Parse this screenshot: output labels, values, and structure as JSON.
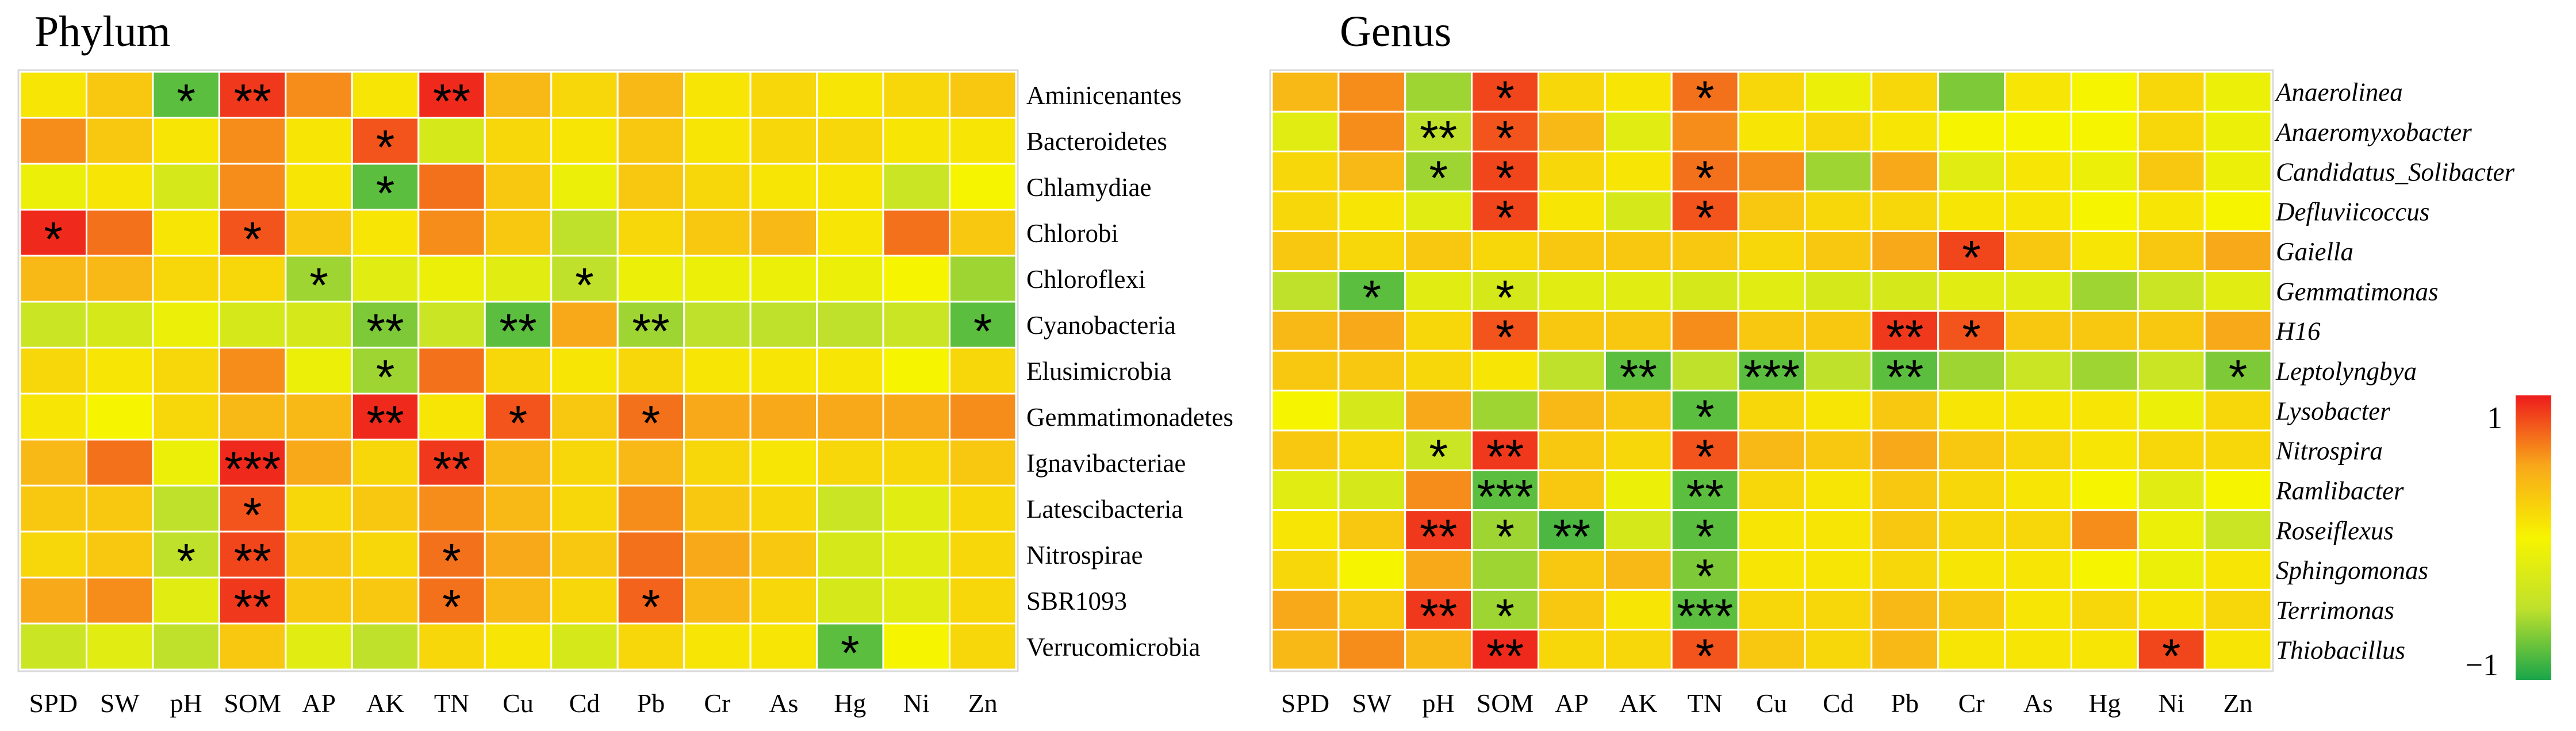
{
  "chart_data": [
    {
      "type": "heatmap",
      "title": "Phylum",
      "italic_labels": false,
      "columns": [
        "SPD",
        "SW",
        "pH",
        "SOM",
        "AP",
        "AK",
        "TN",
        "Cu",
        "Cd",
        "Pb",
        "Cr",
        "As",
        "Hg",
        "Ni",
        "Zn"
      ],
      "rows": [
        "Aminicenantes",
        "Bacteroidetes",
        "Chlamydiae",
        "Chlorobi",
        "Chloroflexi",
        "Cyanobacteria",
        "Elusimicrobia",
        "Gemmatimonadetes",
        "Ignavibacteriae",
        "Latescibacteria",
        "Nitrospirae",
        "SBR1093",
        "Verrucomicrobia"
      ],
      "values": [
        [
          0.1,
          0.3,
          -0.8,
          0.9,
          0.6,
          0.1,
          0.95,
          0.4,
          0.2,
          0.4,
          0.1,
          0.2,
          0.1,
          0.2,
          0.3
        ],
        [
          0.6,
          0.3,
          0.1,
          0.6,
          0.1,
          0.8,
          -0.3,
          0.2,
          0.1,
          0.3,
          0.1,
          0.2,
          0.2,
          0.1,
          0.1
        ],
        [
          -0.1,
          0.1,
          -0.3,
          0.6,
          0.1,
          -0.8,
          0.7,
          0.3,
          -0.1,
          0.3,
          0.2,
          0.1,
          0.1,
          -0.4,
          0.0
        ],
        [
          0.95,
          0.7,
          0.1,
          0.8,
          0.3,
          0.1,
          0.6,
          0.3,
          -0.5,
          0.2,
          0.3,
          0.4,
          0.1,
          0.7,
          0.3
        ],
        [
          0.4,
          0.4,
          0.2,
          0.2,
          -0.6,
          -0.2,
          -0.1,
          -0.2,
          -0.5,
          -0.1,
          -0.1,
          -0.1,
          -0.1,
          0.0,
          -0.6
        ],
        [
          -0.4,
          -0.3,
          -0.1,
          -0.3,
          -0.3,
          -0.7,
          -0.4,
          -0.8,
          0.5,
          -0.6,
          -0.5,
          -0.5,
          -0.5,
          -0.4,
          -0.8
        ],
        [
          0.2,
          0.1,
          0.2,
          0.6,
          -0.1,
          -0.6,
          0.7,
          0.2,
          0.1,
          0.2,
          0.1,
          0.1,
          0.1,
          0.0,
          0.2
        ],
        [
          0.1,
          0.0,
          0.2,
          0.4,
          0.4,
          0.95,
          0.1,
          0.8,
          0.3,
          0.7,
          0.5,
          0.5,
          0.5,
          0.5,
          0.6
        ],
        [
          0.4,
          0.7,
          -0.1,
          0.95,
          0.5,
          0.2,
          0.9,
          0.4,
          0.2,
          0.4,
          0.2,
          0.1,
          0.2,
          0.2,
          0.3
        ],
        [
          0.3,
          0.3,
          -0.5,
          0.8,
          0.2,
          0.3,
          0.6,
          0.4,
          0.2,
          0.6,
          0.3,
          0.2,
          -0.4,
          -0.2,
          0.2
        ],
        [
          0.2,
          0.3,
          -0.5,
          0.85,
          0.3,
          0.2,
          0.7,
          0.5,
          0.3,
          0.7,
          0.5,
          0.3,
          -0.3,
          -0.2,
          0.2
        ],
        [
          0.5,
          0.6,
          -0.2,
          0.9,
          0.3,
          0.3,
          0.7,
          0.4,
          0.2,
          0.75,
          0.4,
          0.2,
          -0.3,
          -0.2,
          0.2
        ],
        [
          -0.4,
          -0.2,
          -0.5,
          0.3,
          -0.2,
          -0.5,
          0.2,
          0.1,
          -0.3,
          0.2,
          0.1,
          0.1,
          -0.8,
          0.0,
          0.2
        ]
      ],
      "stars": [
        [
          "",
          "",
          "*",
          "**",
          "",
          "",
          "**",
          "",
          "",
          "",
          "",
          "",
          "",
          "",
          ""
        ],
        [
          "",
          "",
          "",
          "",
          "",
          "*",
          "",
          "",
          "",
          "",
          "",
          "",
          "",
          "",
          ""
        ],
        [
          "",
          "",
          "",
          "",
          "",
          "*",
          "",
          "",
          "",
          "",
          "",
          "",
          "",
          "",
          ""
        ],
        [
          "*",
          "",
          "",
          "*",
          "",
          "",
          "",
          "",
          "",
          "",
          "",
          "",
          "",
          "",
          ""
        ],
        [
          "",
          "",
          "",
          "",
          "*",
          "",
          "",
          "",
          "*",
          "",
          "",
          "",
          "",
          "",
          ""
        ],
        [
          "",
          "",
          "",
          "",
          "",
          "**",
          "",
          "**",
          "",
          "**",
          "",
          "",
          "",
          "",
          "*"
        ],
        [
          "",
          "",
          "",
          "",
          "",
          "*",
          "",
          "",
          "",
          "",
          "",
          "",
          "",
          "",
          ""
        ],
        [
          "",
          "",
          "",
          "",
          "",
          "**",
          "",
          "*",
          "",
          "*",
          "",
          "",
          "",
          "",
          ""
        ],
        [
          "",
          "",
          "",
          "***",
          "",
          "",
          "**",
          "",
          "",
          "",
          "",
          "",
          "",
          "",
          ""
        ],
        [
          "",
          "",
          "",
          "*",
          "",
          "",
          "",
          "",
          "",
          "",
          "",
          "",
          "",
          "",
          ""
        ],
        [
          "",
          "",
          "*",
          "**",
          "",
          "",
          "*",
          "",
          "",
          "",
          "",
          "",
          "",
          "",
          ""
        ],
        [
          "",
          "",
          "",
          "**",
          "",
          "",
          "*",
          "",
          "",
          "*",
          "",
          "",
          "",
          "",
          ""
        ],
        [
          "",
          "",
          "",
          "",
          "",
          "",
          "",
          "",
          "",
          "",
          "",
          "",
          "*",
          "",
          ""
        ]
      ]
    },
    {
      "type": "heatmap",
      "title": "Genus",
      "italic_labels": true,
      "columns": [
        "SPD",
        "SW",
        "pH",
        "SOM",
        "AP",
        "AK",
        "TN",
        "Cu",
        "Cd",
        "Pb",
        "Cr",
        "As",
        "Hg",
        "Ni",
        "Zn"
      ],
      "rows": [
        "Anaerolinea",
        "Anaeromyxobacter",
        "Candidatus_Solibacter",
        "Defluviicoccus",
        "Gaiella",
        "Gemmatimonas",
        "H16",
        "Leptolyngbya",
        "Lysobacter",
        "Nitrospira",
        "Ramlibacter",
        "Roseiflexus",
        "Sphingomonas",
        "Terrimonas",
        "Thiobacillus"
      ],
      "values": [
        [
          0.4,
          0.6,
          -0.6,
          0.85,
          0.2,
          0.1,
          0.7,
          0.2,
          -0.1,
          0.2,
          -0.7,
          0.1,
          0.0,
          0.2,
          -0.1
        ],
        [
          -0.2,
          0.6,
          -0.5,
          0.8,
          0.4,
          -0.2,
          0.6,
          0.1,
          0.2,
          0.1,
          0.0,
          0.0,
          0.0,
          0.2,
          -0.1
        ],
        [
          0.2,
          0.4,
          -0.6,
          0.85,
          0.2,
          0.1,
          0.7,
          0.6,
          -0.6,
          0.5,
          -0.2,
          0.1,
          -0.1,
          0.3,
          -0.1
        ],
        [
          0.2,
          0.1,
          -0.2,
          0.85,
          0.1,
          -0.3,
          0.8,
          0.3,
          0.2,
          0.2,
          0.1,
          0.1,
          0.0,
          0.1,
          0.0
        ],
        [
          0.3,
          0.2,
          0.3,
          0.2,
          0.3,
          0.3,
          0.3,
          0.2,
          0.3,
          0.5,
          0.85,
          0.3,
          0.1,
          0.3,
          0.5
        ],
        [
          -0.5,
          -0.8,
          -0.2,
          -0.3,
          -0.2,
          -0.2,
          -0.3,
          -0.2,
          -0.3,
          -0.3,
          -0.2,
          -0.2,
          -0.6,
          -0.4,
          -0.2
        ],
        [
          0.4,
          0.5,
          0.2,
          0.8,
          0.3,
          0.3,
          0.6,
          0.3,
          0.3,
          0.9,
          0.8,
          0.3,
          0.3,
          0.3,
          0.5
        ],
        [
          0.3,
          0.3,
          0.2,
          0.1,
          -0.5,
          -0.8,
          -0.5,
          -0.8,
          -0.5,
          -0.8,
          -0.6,
          -0.4,
          -0.6,
          -0.4,
          -0.7
        ],
        [
          0.0,
          -0.3,
          0.5,
          -0.6,
          0.4,
          0.3,
          -0.8,
          0.2,
          0.1,
          0.3,
          0.1,
          0.1,
          0.1,
          -0.1,
          0.2
        ],
        [
          0.3,
          0.2,
          -0.4,
          0.9,
          0.3,
          0.2,
          0.8,
          0.4,
          0.3,
          0.5,
          0.3,
          0.2,
          0.1,
          0.2,
          0.2
        ],
        [
          -0.2,
          -0.3,
          0.6,
          -0.8,
          0.3,
          -0.1,
          -0.8,
          0.2,
          0.1,
          0.3,
          0.2,
          0.1,
          0.0,
          -0.2,
          0.0
        ],
        [
          0.1,
          0.3,
          0.9,
          -0.6,
          -0.85,
          -0.3,
          -0.8,
          0.1,
          0.1,
          0.3,
          0.2,
          0.2,
          0.6,
          -0.1,
          -0.4
        ],
        [
          0.2,
          0.0,
          0.5,
          -0.6,
          0.3,
          0.4,
          -0.7,
          0.1,
          0.1,
          0.2,
          0.1,
          0.1,
          0.0,
          -0.1,
          0.1
        ],
        [
          0.5,
          0.3,
          0.9,
          -0.6,
          0.3,
          0.1,
          -0.8,
          0.2,
          0.2,
          0.4,
          0.3,
          0.1,
          0.2,
          0.1,
          0.2
        ],
        [
          0.4,
          0.6,
          0.4,
          0.95,
          0.2,
          0.2,
          0.8,
          0.3,
          0.2,
          0.4,
          0.1,
          0.1,
          0.1,
          0.85,
          0.1
        ]
      ],
      "stars": [
        [
          "",
          "",
          "",
          "*",
          "",
          "",
          "*",
          "",
          "",
          "",
          "",
          "",
          "",
          "",
          ""
        ],
        [
          "",
          "",
          "**",
          "*",
          "",
          "",
          "",
          "",
          "",
          "",
          "",
          "",
          "",
          "",
          ""
        ],
        [
          "",
          "",
          "*",
          "*",
          "",
          "",
          "*",
          "",
          "",
          "",
          "",
          "",
          "",
          "",
          ""
        ],
        [
          "",
          "",
          "",
          "*",
          "",
          "",
          "*",
          "",
          "",
          "",
          "",
          "",
          "",
          "",
          ""
        ],
        [
          "",
          "",
          "",
          "",
          "",
          "",
          "",
          "",
          "",
          "",
          "*",
          "",
          "",
          "",
          ""
        ],
        [
          "",
          "*",
          "",
          "*",
          "",
          "",
          "",
          "",
          "",
          "",
          "",
          "",
          "",
          "",
          ""
        ],
        [
          "",
          "",
          "",
          "*",
          "",
          "",
          "",
          "",
          "",
          "**",
          "*",
          "",
          "",
          "",
          ""
        ],
        [
          "",
          "",
          "",
          "",
          "",
          "**",
          "",
          "***",
          "",
          "**",
          "",
          "",
          "",
          "",
          "*"
        ],
        [
          "",
          "",
          "",
          "",
          "",
          "",
          "*",
          "",
          "",
          "",
          "",
          "",
          "",
          "",
          ""
        ],
        [
          "",
          "",
          "*",
          "**",
          "",
          "",
          "*",
          "",
          "",
          "",
          "",
          "",
          "",
          "",
          ""
        ],
        [
          "",
          "",
          "",
          "***",
          "",
          "",
          "**",
          "",
          "",
          "",
          "",
          "",
          "",
          "",
          ""
        ],
        [
          "",
          "",
          "**",
          "*",
          "**",
          "",
          "*",
          "",
          "",
          "",
          "",
          "",
          "",
          "",
          ""
        ],
        [
          "",
          "",
          "",
          "",
          "",
          "",
          "*",
          "",
          "",
          "",
          "",
          "",
          "",
          "",
          ""
        ],
        [
          "",
          "",
          "**",
          "*",
          "",
          "",
          "***",
          "",
          "",
          "",
          "",
          "",
          "",
          "",
          ""
        ],
        [
          "",
          "",
          "",
          "**",
          "",
          "",
          "*",
          "",
          "",
          "",
          "",
          "",
          "",
          "*",
          ""
        ]
      ]
    }
  ],
  "legend": {
    "max_label": "1",
    "min_label": "−1",
    "range": [
      -1,
      1
    ]
  },
  "colors": {
    "low": "#1aa64a",
    "mid_low": "#bfe12c",
    "mid": "#f7f400",
    "mid_high": "#f8a91a",
    "high": "#ee1c1c",
    "cell_border": "#ffffff",
    "frame": "#d9d9d9"
  }
}
